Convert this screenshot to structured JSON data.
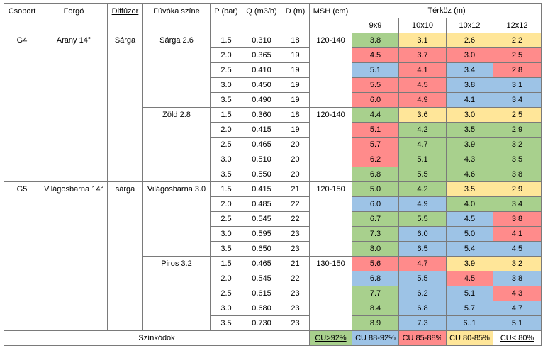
{
  "headers": {
    "csoport": "Csoport",
    "forgo": "Forgó",
    "diffuzor": "Diffúzor",
    "fuvoka": "Fúvóka színe",
    "p": "P (bar)",
    "q": "Q (m3/h)",
    "d": "D (m)",
    "msh": "MSH (cm)",
    "terkoz": "Térköz (m)",
    "spacings": [
      "9x9",
      "10x10",
      "10x12",
      "12x12"
    ]
  },
  "groups": [
    {
      "csoport": "G4",
      "forgo": "Arany 14°",
      "diffuzor": "Sárga",
      "nozzles": [
        {
          "name": "Sárga 2.6",
          "msh": "120-140",
          "rows": [
            {
              "p": "1.5",
              "q": "0.310",
              "d": "18",
              "cells": [
                {
                  "v": "3.8",
                  "c": "green"
                },
                {
                  "v": "3.1",
                  "c": "yellow"
                },
                {
                  "v": "2.6",
                  "c": "yellow"
                },
                {
                  "v": "2.2",
                  "c": "yellow"
                }
              ]
            },
            {
              "p": "2.0",
              "q": "0.365",
              "d": "19",
              "cells": [
                {
                  "v": "4.5",
                  "c": "red"
                },
                {
                  "v": "3.7",
                  "c": "red"
                },
                {
                  "v": "3.0",
                  "c": "red"
                },
                {
                  "v": "2.5",
                  "c": "red"
                }
              ]
            },
            {
              "p": "2.5",
              "q": "0.410",
              "d": "19",
              "cells": [
                {
                  "v": "5.1",
                  "c": "blue"
                },
                {
                  "v": "4.1",
                  "c": "red"
                },
                {
                  "v": "3.4",
                  "c": "blue"
                },
                {
                  "v": "2.8",
                  "c": "red"
                }
              ]
            },
            {
              "p": "3.0",
              "q": "0.450",
              "d": "19",
              "cells": [
                {
                  "v": "5.5",
                  "c": "red"
                },
                {
                  "v": "4.5",
                  "c": "red"
                },
                {
                  "v": "3.8",
                  "c": "blue"
                },
                {
                  "v": "3.1",
                  "c": "blue"
                }
              ]
            },
            {
              "p": "3.5",
              "q": "0.490",
              "d": "19",
              "cells": [
                {
                  "v": "6.0",
                  "c": "red"
                },
                {
                  "v": "4.9",
                  "c": "red"
                },
                {
                  "v": "4.1",
                  "c": "blue"
                },
                {
                  "v": "3.4",
                  "c": "blue"
                }
              ]
            }
          ]
        },
        {
          "name": "Zöld 2.8",
          "msh": "120-140",
          "rows": [
            {
              "p": "1.5",
              "q": "0.360",
              "d": "18",
              "cells": [
                {
                  "v": "4.4",
                  "c": "green"
                },
                {
                  "v": "3.6",
                  "c": "yellow"
                },
                {
                  "v": "3.0",
                  "c": "yellow"
                },
                {
                  "v": "2.5",
                  "c": "yellow"
                }
              ]
            },
            {
              "p": "2.0",
              "q": "0.415",
              "d": "19",
              "cells": [
                {
                  "v": "5.1",
                  "c": "red"
                },
                {
                  "v": "4.2",
                  "c": "green"
                },
                {
                  "v": "3.5",
                  "c": "green"
                },
                {
                  "v": "2.9",
                  "c": "green"
                }
              ]
            },
            {
              "p": "2.5",
              "q": "0.465",
              "d": "20",
              "cells": [
                {
                  "v": "5.7",
                  "c": "red"
                },
                {
                  "v": "4.7",
                  "c": "green"
                },
                {
                  "v": "3.9",
                  "c": "green"
                },
                {
                  "v": "3.2",
                  "c": "green"
                }
              ]
            },
            {
              "p": "3.0",
              "q": "0.510",
              "d": "20",
              "cells": [
                {
                  "v": "6.2",
                  "c": "red"
                },
                {
                  "v": "5.1",
                  "c": "green"
                },
                {
                  "v": "4.3",
                  "c": "green"
                },
                {
                  "v": "3.5",
                  "c": "green"
                }
              ]
            },
            {
              "p": "3.5",
              "q": "0.550",
              "d": "20",
              "cells": [
                {
                  "v": "6.8",
                  "c": "green"
                },
                {
                  "v": "5.5",
                  "c": "green"
                },
                {
                  "v": "4.6",
                  "c": "green"
                },
                {
                  "v": "3.8",
                  "c": "green"
                }
              ]
            }
          ]
        }
      ]
    },
    {
      "csoport": "G5",
      "forgo": "Világosbarna 14°",
      "diffuzor": "sárga",
      "nozzles": [
        {
          "name": "Világosbarna 3.0",
          "msh": "120-150",
          "rows": [
            {
              "p": "1.5",
              "q": "0.415",
              "d": "21",
              "cells": [
                {
                  "v": "5.0",
                  "c": "green"
                },
                {
                  "v": "4.2",
                  "c": "green"
                },
                {
                  "v": "3.5",
                  "c": "yellow"
                },
                {
                  "v": "2.9",
                  "c": "yellow"
                }
              ]
            },
            {
              "p": "2.0",
              "q": "0.485",
              "d": "22",
              "cells": [
                {
                  "v": "6.0",
                  "c": "blue"
                },
                {
                  "v": "4.9",
                  "c": "blue"
                },
                {
                  "v": "4.0",
                  "c": "green"
                },
                {
                  "v": "3.4",
                  "c": "green"
                }
              ]
            },
            {
              "p": "2.5",
              "q": "0.545",
              "d": "22",
              "cells": [
                {
                  "v": "6.7",
                  "c": "green"
                },
                {
                  "v": "5.5",
                  "c": "green"
                },
                {
                  "v": "4.5",
                  "c": "blue"
                },
                {
                  "v": "3.8",
                  "c": "red"
                }
              ]
            },
            {
              "p": "3.0",
              "q": "0.595",
              "d": "23",
              "cells": [
                {
                  "v": "7.3",
                  "c": "green"
                },
                {
                  "v": "6.0",
                  "c": "blue"
                },
                {
                  "v": "5.0",
                  "c": "blue"
                },
                {
                  "v": "4.1",
                  "c": "red"
                }
              ]
            },
            {
              "p": "3.5",
              "q": "0.650",
              "d": "23",
              "cells": [
                {
                  "v": "8.0",
                  "c": "green"
                },
                {
                  "v": "6.5",
                  "c": "blue"
                },
                {
                  "v": "5.4",
                  "c": "blue"
                },
                {
                  "v": "4.5",
                  "c": "blue"
                }
              ]
            }
          ]
        },
        {
          "name": "Piros 3.2",
          "msh": "130-150",
          "rows": [
            {
              "p": "1.5",
              "q": "0.465",
              "d": "21",
              "cells": [
                {
                  "v": "5.6",
                  "c": "red"
                },
                {
                  "v": "4.7",
                  "c": "red"
                },
                {
                  "v": "3.9",
                  "c": "yellow"
                },
                {
                  "v": "3.2",
                  "c": "yellow"
                }
              ]
            },
            {
              "p": "2.0",
              "q": "0.545",
              "d": "22",
              "cells": [
                {
                  "v": "6.8",
                  "c": "blue"
                },
                {
                  "v": "5.5",
                  "c": "blue"
                },
                {
                  "v": "4.5",
                  "c": "red"
                },
                {
                  "v": "3.8",
                  "c": "blue"
                }
              ]
            },
            {
              "p": "2.5",
              "q": "0.615",
              "d": "23",
              "cells": [
                {
                  "v": "7.7",
                  "c": "green"
                },
                {
                  "v": "6.2",
                  "c": "blue"
                },
                {
                  "v": "5.1",
                  "c": "blue"
                },
                {
                  "v": "4.3",
                  "c": "red"
                }
              ]
            },
            {
              "p": "3.0",
              "q": "0.680",
              "d": "23",
              "cells": [
                {
                  "v": "8.4",
                  "c": "green"
                },
                {
                  "v": "6.8",
                  "c": "blue"
                },
                {
                  "v": "5.7",
                  "c": "blue"
                },
                {
                  "v": "4.7",
                  "c": "blue"
                }
              ]
            },
            {
              "p": "3.5",
              "q": "0.730",
              "d": "23",
              "cells": [
                {
                  "v": "8.9",
                  "c": "green"
                },
                {
                  "v": "7.3",
                  "c": "blue"
                },
                {
                  "v": "6..1",
                  "c": "blue"
                },
                {
                  "v": "5.1",
                  "c": "blue"
                }
              ]
            }
          ]
        }
      ]
    }
  ],
  "legend": {
    "label": "Színkódok",
    "items": [
      {
        "text": "CU>92%",
        "c": "green"
      },
      {
        "text": "CU 88-92%",
        "c": "blue"
      },
      {
        "text": "CU 85-88%",
        "c": "red"
      },
      {
        "text": "CU 80-85%",
        "c": "yellow"
      },
      {
        "text": "CU< 80%",
        "c": "white"
      }
    ]
  },
  "colors": {
    "green": "#a8d08d",
    "blue": "#9dc3e6",
    "red": "#ff8b8b",
    "yellow": "#ffe699",
    "white": "#ffffff"
  }
}
